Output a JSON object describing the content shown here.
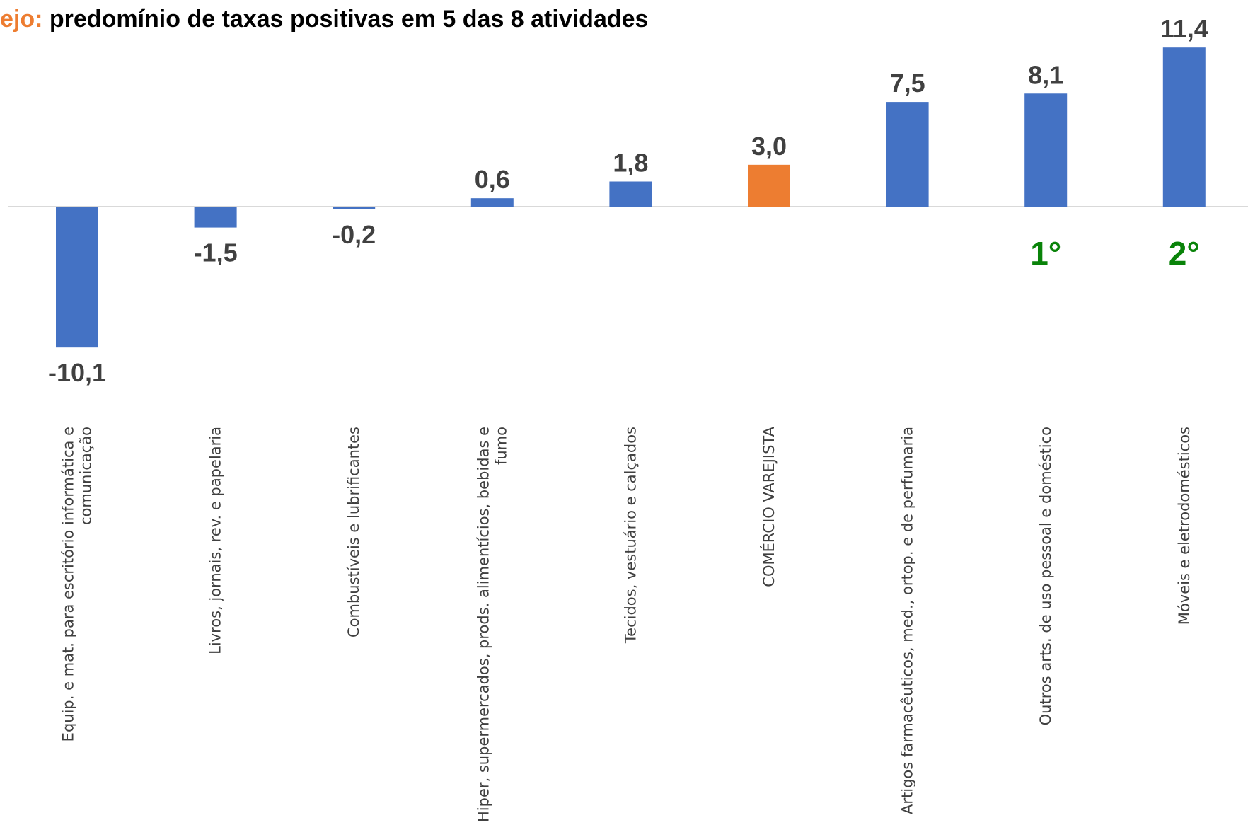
{
  "title": {
    "highlight": "ejo:",
    "text": " predomínio de taxas positivas em 5 das 8 atividades"
  },
  "colors": {
    "bar": "#4472C4",
    "highlight_bar": "#ED7D31",
    "rank": "#098309",
    "axis": "#D9D9D9"
  },
  "chart_data": {
    "type": "bar",
    "categories": [
      [
        "Equip. e mat. para escritório informática e",
        "comunicação"
      ],
      [
        "Livros, jornais, rev. e papelaria"
      ],
      [
        "Combustíveis e lubrificantes"
      ],
      [
        "Hiper, supermercados, prods.  alimentícios, bebidas e",
        "fumo"
      ],
      [
        "Tecidos, vestuário e calçados"
      ],
      [
        "COMÉRCIO VAREJISTA"
      ],
      [
        "Artigos farmacêuticos, med., ortop. e de perfumaria"
      ],
      [
        "Outros arts. de uso pessoal e doméstico"
      ],
      [
        "Móveis e eletrodomésticos"
      ]
    ],
    "values": [
      -10.1,
      -1.5,
      -0.2,
      0.6,
      1.8,
      3.0,
      7.5,
      8.1,
      11.4
    ],
    "value_labels": [
      "-10,1",
      "-1,5",
      "-0,2",
      "0,6",
      "1,8",
      "3,0",
      "7,5",
      "8,1",
      "11,4"
    ],
    "highlight_index": 5,
    "annotations": [
      {
        "index": 7,
        "text": "1°"
      },
      {
        "index": 8,
        "text": "2°"
      }
    ]
  }
}
